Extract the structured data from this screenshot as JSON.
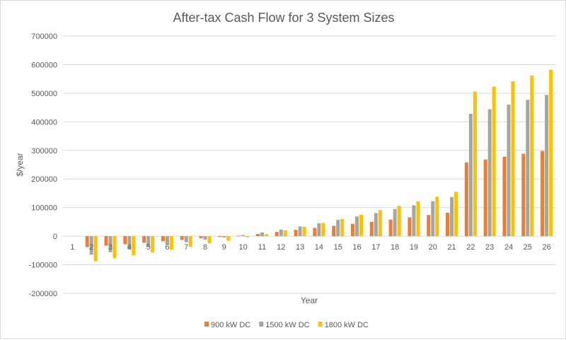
{
  "chart_data": {
    "type": "bar",
    "title": "After-tax Cash Flow for 3 System Sizes",
    "xlabel": "Year",
    "ylabel": "$/year",
    "ylim": [
      -200000,
      700000
    ],
    "yticks": [
      -200000,
      -100000,
      0,
      100000,
      200000,
      300000,
      400000,
      500000,
      600000,
      700000
    ],
    "grid": true,
    "legend_position": "bottom",
    "categories": [
      "1",
      "2",
      "3",
      "4",
      "5",
      "6",
      "7",
      "8",
      "9",
      "10",
      "11",
      "12",
      "13",
      "14",
      "15",
      "16",
      "17",
      "18",
      "19",
      "20",
      "21",
      "22",
      "23",
      "24",
      "25",
      "26"
    ],
    "series": [
      {
        "name": "900 kW DC",
        "color": "#ed7d31",
        "values": [
          0,
          -38000,
          -33000,
          -28000,
          -23000,
          -18000,
          -13000,
          -7000,
          -3000,
          2000,
          8000,
          15000,
          22000,
          29000,
          36000,
          43000,
          50000,
          58000,
          66000,
          74000,
          82000,
          258000,
          268000,
          278000,
          288000,
          298000
        ]
      },
      {
        "name": "1500 kW DC",
        "color": "#a5a5a5",
        "values": [
          0,
          -65000,
          -56000,
          -47000,
          -38000,
          -29000,
          -21000,
          -12000,
          -5000,
          4000,
          13000,
          23000,
          34000,
          45000,
          57000,
          69000,
          81000,
          95000,
          108000,
          122000,
          137000,
          428000,
          444000,
          460000,
          477000,
          494000
        ]
      },
      {
        "name": "1800 kW DC",
        "color": "#ffc000",
        "values": [
          0,
          -88000,
          -77000,
          -67000,
          -57000,
          -47000,
          -37000,
          -25000,
          -16000,
          -4000,
          7000,
          20000,
          33000,
          46000,
          60000,
          75000,
          91000,
          106000,
          122000,
          138000,
          155000,
          505000,
          523000,
          542000,
          562000,
          582000
        ]
      }
    ]
  }
}
